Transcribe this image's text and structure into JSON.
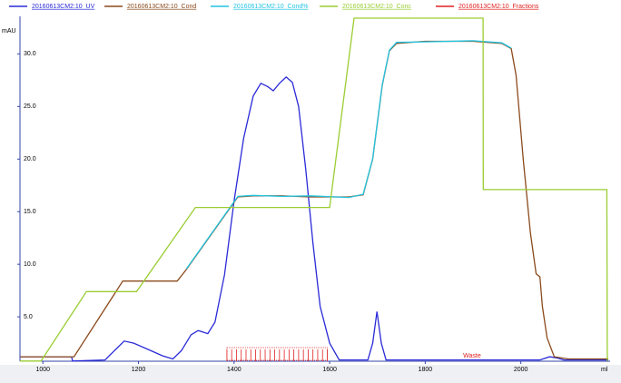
{
  "chart_data": {
    "type": "line",
    "y_label": "mAU",
    "x_label": "ml",
    "xlim": [
      952,
      2183
    ],
    "ylim": [
      0.78,
      33.4
    ],
    "xticks": [
      1000,
      1200,
      1400,
      1600,
      1800,
      2000
    ],
    "yticks": [
      {
        "value": 5,
        "label": "5.0"
      },
      {
        "value": 10,
        "label": "10.0"
      },
      {
        "value": 15,
        "label": "15.0"
      },
      {
        "value": 20,
        "label": "20.0"
      },
      {
        "value": 25,
        "label": "25.0"
      },
      {
        "value": 30,
        "label": "30.0"
      }
    ],
    "series": [
      {
        "name": "20160613CM2:10_UV",
        "color": "#2a2ad8",
        "x": [
          952,
          1060,
          1062,
          1130,
          1150,
          1170,
          1190,
          1220,
          1250,
          1272,
          1290,
          1310,
          1325,
          1345,
          1360,
          1380,
          1400,
          1420,
          1440,
          1456,
          1470,
          1482,
          1495,
          1509,
          1522,
          1535,
          1550,
          1565,
          1580,
          1600,
          1620,
          1680,
          1690,
          1699,
          1708,
          1718,
          2040,
          2060,
          2075,
          2090,
          2183
        ],
        "values": [
          1.2,
          1.2,
          0.8,
          0.9,
          1.8,
          2.7,
          2.5,
          1.9,
          1.3,
          1.0,
          1.8,
          3.3,
          3.7,
          3.4,
          4.5,
          9,
          16,
          22,
          26,
          27.2,
          26.9,
          26.5,
          27.2,
          27.8,
          27.3,
          25,
          19,
          12,
          6,
          2.5,
          0.9,
          0.9,
          2.5,
          5.5,
          2.5,
          0.9,
          0.9,
          1.2,
          1.1,
          0.9,
          0.9
        ]
      },
      {
        "name": "20160613CM2:10_Cond",
        "color": "#8b4a1c",
        "x": [
          952,
          1065,
          1167,
          1281,
          1300,
          1408,
          1440,
          1500,
          1560,
          1640,
          1670,
          1690,
          1710,
          1725,
          1740,
          1800,
          1900,
          1960,
          1980,
          1990,
          2005,
          2020,
          2032,
          2040,
          2045,
          2055,
          2070,
          2100,
          2183
        ],
        "values": [
          1.2,
          1.2,
          8.4,
          8.4,
          9.5,
          16.4,
          16.5,
          16.5,
          16.4,
          16.4,
          16.6,
          20,
          27,
          30.3,
          31.0,
          31.2,
          31.2,
          31.0,
          30.5,
          28,
          20,
          13,
          9.1,
          8.8,
          6,
          3,
          1.2,
          1.0,
          1.0
        ]
      },
      {
        "name": "20160613CM2:10_Cond%",
        "color": "#22c4e0",
        "x": [
          1300,
          1408,
          1440,
          1500,
          1560,
          1640,
          1670,
          1690,
          1710,
          1725,
          1740,
          1800,
          1900,
          1960,
          1980
        ],
        "values": [
          9.55,
          16.45,
          16.55,
          16.45,
          16.5,
          16.35,
          16.65,
          20.05,
          27.05,
          30.35,
          31.1,
          31.15,
          31.25,
          31.05,
          30.55
        ]
      },
      {
        "name": "20160613CM2:10_Conc",
        "color": "#9acd32",
        "x": [
          952,
          996,
          1091,
          1196,
          1319,
          1600,
          1651,
          1921,
          1921.5,
          2180,
          2181
        ],
        "values": [
          0.8,
          0.8,
          7.4,
          7.4,
          15.4,
          15.4,
          33.4,
          33.4,
          17.1,
          17.1,
          0.8
        ]
      }
    ],
    "fractions": {
      "name": "20160613CM2:10_Fractions",
      "color": "#e02020",
      "x": [
        1385,
        1395,
        1405,
        1415,
        1425,
        1435,
        1445,
        1455,
        1465,
        1475,
        1485,
        1495,
        1505,
        1515,
        1525,
        1535,
        1545,
        1555,
        1565,
        1575,
        1585,
        1595
      ],
      "annotation": {
        "text": "Waste",
        "x": 1898
      }
    }
  }
}
